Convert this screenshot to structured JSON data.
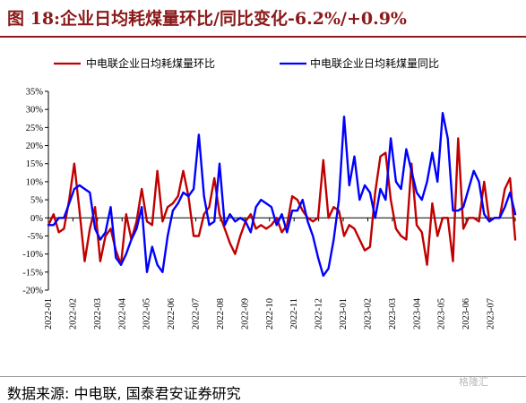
{
  "title": "图 18:企业日均耗煤量环比/同比变化-6.2%/+0.9%",
  "source": "数据来源: 中电联, 国泰君安证券研究",
  "watermark": "格隆汇",
  "colors": {
    "title": "#8b1a1a",
    "mom": "#c00000",
    "yoy": "#0000ff"
  },
  "chart_data": {
    "type": "line",
    "title": "图 18:企业日均耗煤量环比/同比变化-6.2%/+0.9%",
    "xlabel": "",
    "ylabel": "",
    "ylim": [
      -20,
      35
    ],
    "yticks": [
      "35%",
      "30%",
      "25%",
      "20%",
      "15%",
      "10%",
      "5%",
      "0%",
      "-5%",
      "-10%",
      "-15%",
      "-20%"
    ],
    "xticks": [
      "2022-01",
      "2022-02",
      "2022-03",
      "2022-04",
      "2022-05",
      "2022-06",
      "2022-07",
      "2022-08",
      "2022-09",
      "2022-10",
      "2022-11",
      "2022-12",
      "2023-01",
      "2023-02",
      "2023-03",
      "2023-04",
      "2023-05",
      "2023-06",
      "2023-07"
    ],
    "grid": false,
    "legend": "top",
    "series": [
      {
        "name": "中电联企业日均耗煤量环比",
        "color": "#c00000",
        "values": [
          -2,
          1,
          -4,
          -3,
          5,
          15,
          2,
          -12,
          -3,
          3,
          -12,
          -5,
          -3,
          -9,
          -13,
          1,
          -6,
          -1,
          8,
          -1,
          -2,
          13,
          -1,
          3,
          4,
          6,
          13,
          6,
          -5,
          -5,
          1,
          3,
          11,
          1,
          -3,
          -7,
          -10,
          -5,
          -1,
          1,
          -3,
          -2,
          -3,
          -2,
          0,
          -4,
          -2,
          6,
          5,
          2,
          0,
          -1,
          0,
          16,
          0,
          3,
          2,
          -5,
          -2,
          -3,
          -6,
          -9,
          -8,
          7,
          17,
          18,
          5,
          -3,
          -5,
          -6,
          15,
          -2,
          -4,
          -13,
          4,
          -5,
          0,
          0,
          -12,
          22,
          -3,
          0,
          0,
          -1,
          10,
          -1,
          0,
          0,
          8,
          11,
          -6
        ]
      },
      {
        "name": "中电联企业日均耗煤量同比",
        "color": "#0000ff",
        "values": [
          -2,
          -2,
          0,
          0,
          4,
          8,
          9,
          8,
          7,
          -3,
          -6,
          -4,
          3,
          -11,
          -13,
          -10,
          -6,
          -3,
          3,
          -15,
          -8,
          -13,
          -15,
          -5,
          2,
          4,
          7,
          6,
          8,
          23,
          6,
          -2,
          -1,
          15,
          -2,
          1,
          -1,
          0,
          -1,
          -4,
          3,
          5,
          4,
          3,
          -2,
          1,
          -4,
          2,
          2,
          5,
          -1,
          -5,
          -11,
          -16,
          -14,
          -6,
          5,
          28,
          9,
          17,
          5,
          9,
          7,
          0,
          8,
          5,
          22,
          10,
          8,
          19,
          13,
          7,
          5,
          10,
          18,
          10,
          29,
          22,
          2,
          2,
          3,
          8,
          13,
          10,
          1,
          -1,
          0,
          0,
          3,
          7,
          1
        ]
      }
    ]
  }
}
